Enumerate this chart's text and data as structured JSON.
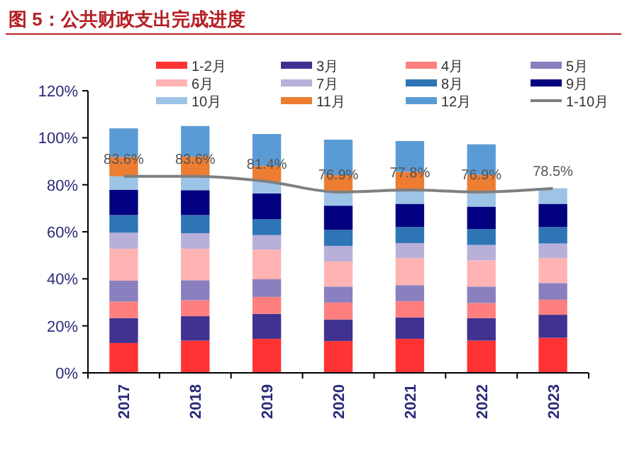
{
  "chart_data": {
    "type": "bar",
    "title": "图 5：公共财政支出完成进度",
    "stacked": true,
    "legend": "top",
    "categories": [
      "2017",
      "2018",
      "2019",
      "2020",
      "2021",
      "2022",
      "2023"
    ],
    "ylim": [
      0,
      120
    ],
    "yticks": [
      {
        "value": 0,
        "label": "0%"
      },
      {
        "value": 20,
        "label": "20%"
      },
      {
        "value": 40,
        "label": "40%"
      },
      {
        "value": 60,
        "label": "60%"
      },
      {
        "value": 80,
        "label": "80%"
      },
      {
        "value": 100,
        "label": "100%"
      },
      {
        "value": 120,
        "label": "120%"
      }
    ],
    "series": [
      {
        "name": "1-2月",
        "color": "#ff3333",
        "values": [
          12.7,
          13.7,
          14.5,
          13.5,
          14.5,
          13.7,
          14.9
        ]
      },
      {
        "name": "3月",
        "color": "#3f3291",
        "values": [
          10.6,
          10.4,
          10.6,
          9.2,
          9.0,
          9.6,
          9.8
        ]
      },
      {
        "name": "4月",
        "color": "#ff7f7f",
        "values": [
          7.0,
          6.8,
          7.2,
          7.2,
          7.0,
          6.4,
          6.4
        ]
      },
      {
        "name": "5月",
        "color": "#8a7fbf",
        "values": [
          8.9,
          8.5,
          7.5,
          6.8,
          6.8,
          7.0,
          7.1
        ]
      },
      {
        "name": "6月",
        "color": "#ffb3b3",
        "values": [
          13.6,
          13.4,
          12.6,
          10.7,
          11.5,
          11.1,
          10.6
        ]
      },
      {
        "name": "7月",
        "color": "#b8b0d9",
        "values": [
          6.8,
          6.6,
          6.2,
          6.6,
          6.4,
          6.6,
          6.2
        ]
      },
      {
        "name": "8月",
        "color": "#2e75b6",
        "values": [
          7.5,
          7.7,
          6.7,
          6.8,
          6.8,
          6.8,
          7.0
        ]
      },
      {
        "name": "9月",
        "color": "#000080",
        "values": [
          10.8,
          10.6,
          11.0,
          10.3,
          9.9,
          9.5,
          9.9
        ]
      },
      {
        "name": "10月",
        "color": "#9dc3e6",
        "values": [
          5.7,
          5.9,
          5.1,
          5.8,
          5.9,
          6.2,
          6.6
        ]
      },
      {
        "name": "11月",
        "color": "#ed7d31",
        "values": [
          8.2,
          8.4,
          6.6,
          7.2,
          7.7,
          7.4,
          null
        ]
      },
      {
        "name": "12月",
        "color": "#5b9bd5",
        "values": [
          12.2,
          13.0,
          13.6,
          15.1,
          13.1,
          12.9,
          null
        ]
      },
      {
        "name": "1-10月",
        "type": "line",
        "color": "#7f7f7f",
        "values": [
          83.6,
          83.6,
          81.4,
          76.9,
          77.8,
          76.9,
          78.5
        ],
        "value_labels": [
          "83.6%",
          "83.6%",
          "81.4%",
          "76.9%",
          "77.8%",
          "76.9%",
          "78.5%"
        ]
      }
    ]
  }
}
